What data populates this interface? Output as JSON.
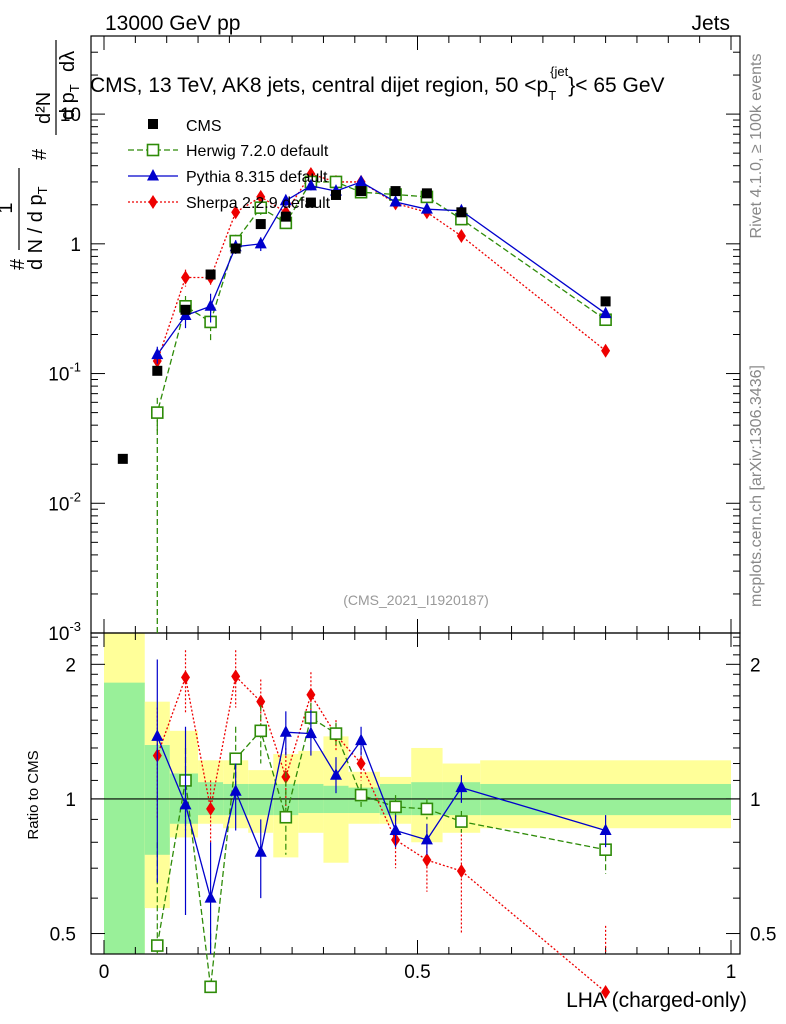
{
  "header": {
    "left": "13000 GeV pp",
    "right": "Jets",
    "right_vertical_top": "Rivet 4.1.0, ≥ 100k events",
    "right_vertical_bottom": "mcplots.cern.ch [arXiv:1306.3436]",
    "analysis_id": "(CMS_2021_I1920187)"
  },
  "colors": {
    "data": "#000000",
    "herwig": "#2e8b08",
    "pythia": "#0000cc",
    "sherpa": "#ee0000",
    "band_inner": "#99f099",
    "band_outer": "#ffff99"
  },
  "chart_data": {
    "type": "scatter",
    "title": "CMS, 13 TeV, AK8 jets, central dijet region, 50 <p_T^{jet}< 65 GeV",
    "title_parts": {
      "main": "CMS, 13 TeV, AK8 jets, central dijet region, 50 <p",
      "sub": "T",
      "sup": "{jet",
      "tail": "}< 65 GeV"
    },
    "xlabel": "LHA (charged-only)",
    "xlim": [
      -0.02,
      1.0
    ],
    "x_ticks": [
      "0",
      "0.5",
      "1"
    ],
    "x_tick_values": [
      0,
      0.5,
      1
    ],
    "main": {
      "yscale": "log",
      "ylim": [
        0.001,
        40
      ],
      "ylabel": "1/(dN/dp_T) d²N/(dp_T dλ)",
      "ylabel_parts": {
        "one": "1",
        "dN": "d N / d p",
        "T": "T",
        "hash": "#",
        "d2N": "d²N",
        "dpT": "d p",
        "dl": "dλ"
      },
      "y_ticks": [
        {
          "label": "10",
          "sup": "-3",
          "value": 0.001
        },
        {
          "label": "10",
          "sup": "-2",
          "value": 0.01
        },
        {
          "label": "10",
          "sup": "-1",
          "value": 0.1
        },
        {
          "label": "1",
          "sup": "",
          "value": 1
        },
        {
          "label": "10",
          "sup": "",
          "value": 10
        }
      ],
      "legend": [
        {
          "key": "cms",
          "label": "CMS"
        },
        {
          "key": "herwig",
          "label": "Herwig 7.2.0 default"
        },
        {
          "key": "pythia",
          "label": "Pythia 8.315 default"
        },
        {
          "key": "sherpa",
          "label": "Sherpa 2.2.9 default"
        }
      ],
      "legend_position": "top-left",
      "cms": {
        "x": [
          0.03,
          0.085,
          0.13,
          0.17,
          0.21,
          0.25,
          0.29,
          0.33,
          0.37,
          0.41,
          0.465,
          0.515,
          0.57,
          0.8
        ],
        "y": [
          0.022,
          0.105,
          0.31,
          0.58,
          0.92,
          1.42,
          1.62,
          2.08,
          2.38,
          2.55,
          2.55,
          2.45,
          1.75,
          0.36
        ]
      },
      "herwig": {
        "x": [
          0.085,
          0.13,
          0.17,
          0.21,
          0.25,
          0.29,
          0.33,
          0.37,
          0.41,
          0.465,
          0.515,
          0.57,
          0.8
        ],
        "y": [
          0.05,
          0.33,
          0.25,
          1.05,
          1.9,
          1.45,
          3.0,
          3.0,
          2.5,
          2.4,
          2.3,
          1.55,
          0.26
        ],
        "err": [
          0.3,
          0.2,
          0.3,
          0.12,
          0.12,
          0.1,
          0.08,
          0.08,
          0.05,
          0.05,
          0.05,
          0.05,
          0.08
        ]
      },
      "pythia": {
        "x": [
          0.085,
          0.13,
          0.17,
          0.21,
          0.25,
          0.29,
          0.33,
          0.37,
          0.41,
          0.465,
          0.515,
          0.57,
          0.8
        ],
        "y": [
          0.14,
          0.28,
          0.33,
          0.95,
          1.0,
          2.15,
          2.8,
          2.55,
          3.0,
          2.1,
          1.85,
          1.8,
          0.29
        ],
        "err": [
          0.15,
          0.2,
          0.25,
          0.12,
          0.12,
          0.1,
          0.08,
          0.06,
          0.06,
          0.06,
          0.06,
          0.06,
          0.06
        ]
      },
      "sherpa": {
        "x": [
          0.085,
          0.13,
          0.17,
          0.21,
          0.25,
          0.29,
          0.33,
          0.37,
          0.41,
          0.465,
          0.515,
          0.57,
          0.8
        ],
        "y": [
          0.125,
          0.55,
          0.55,
          1.75,
          2.3,
          1.75,
          3.45,
          3.0,
          3.0,
          2.05,
          1.75,
          1.15,
          0.15
        ],
        "err": [
          0.18,
          0.15,
          0.12,
          0.1,
          0.1,
          0.1,
          0.08,
          0.08,
          0.08,
          0.08,
          0.08,
          0.08,
          0.1
        ]
      }
    },
    "ratio": {
      "ylabel": "Ratio to CMS",
      "ylim": [
        0.45,
        2.35
      ],
      "y_ticks": [
        {
          "label": "0.5",
          "value": 0.5
        },
        {
          "label": "1",
          "value": 1
        },
        {
          "label": "2",
          "value": 2
        }
      ],
      "band_edges": [
        0.0,
        0.065,
        0.105,
        0.15,
        0.19,
        0.23,
        0.27,
        0.31,
        0.35,
        0.39,
        0.44,
        0.49,
        0.54,
        0.6,
        1.0
      ],
      "band_inner": [
        [
          0.38,
          1.82
        ],
        [
          0.75,
          1.32
        ],
        [
          0.88,
          1.14
        ],
        [
          0.92,
          1.09
        ],
        [
          0.92,
          1.08
        ],
        [
          0.92,
          1.08
        ],
        [
          0.92,
          1.08
        ],
        [
          0.93,
          1.08
        ],
        [
          0.93,
          1.07
        ],
        [
          0.93,
          1.06
        ],
        [
          0.92,
          1.08
        ],
        [
          0.92,
          1.09
        ],
        [
          0.92,
          1.09
        ],
        [
          0.92,
          1.08
        ]
      ],
      "band_outer": [
        [
          0.38,
          2.35
        ],
        [
          0.57,
          1.65
        ],
        [
          0.82,
          1.42
        ],
        [
          0.88,
          1.22
        ],
        [
          0.86,
          1.22
        ],
        [
          0.84,
          1.16
        ],
        [
          0.74,
          1.26
        ],
        [
          0.84,
          1.28
        ],
        [
          0.72,
          1.38
        ],
        [
          0.88,
          1.15
        ],
        [
          0.88,
          1.12
        ],
        [
          0.8,
          1.3
        ],
        [
          0.84,
          1.2
        ],
        [
          0.86,
          1.22
        ]
      ],
      "herwig": {
        "x": [
          0.085,
          0.13,
          0.17,
          0.21,
          0.25,
          0.29,
          0.33,
          0.37,
          0.41,
          0.465,
          0.515,
          0.57,
          0.8
        ],
        "y": [
          0.47,
          1.1,
          0.38,
          1.23,
          1.42,
          0.91,
          1.52,
          1.4,
          1.02,
          0.96,
          0.95,
          0.89,
          0.77
        ],
        "lo": [
          0.2,
          0.85,
          0.3,
          1.0,
          1.2,
          0.75,
          1.4,
          1.32,
          0.96,
          0.9,
          0.9,
          0.84,
          0.68
        ],
        "hi": [
          0.8,
          1.3,
          0.5,
          1.45,
          1.62,
          1.15,
          1.64,
          1.48,
          1.08,
          1.02,
          1.0,
          0.94,
          0.86
        ]
      },
      "pythia": {
        "x": [
          0.085,
          0.13,
          0.17,
          0.21,
          0.25,
          0.29,
          0.33,
          0.37,
          0.41,
          0.465,
          0.515,
          0.57,
          0.8
        ],
        "y": [
          1.38,
          0.97,
          0.6,
          1.04,
          0.76,
          1.41,
          1.4,
          1.13,
          1.35,
          0.85,
          0.81,
          1.06,
          0.85
        ],
        "lo": [
          0.65,
          0.55,
          0.35,
          0.85,
          0.6,
          1.25,
          1.25,
          1.03,
          1.25,
          0.78,
          0.75,
          0.98,
          0.78
        ],
        "hi": [
          2.05,
          1.45,
          0.8,
          1.2,
          0.9,
          1.57,
          1.58,
          1.24,
          1.45,
          0.92,
          0.88,
          1.13,
          0.92
        ]
      },
      "sherpa": {
        "x": [
          0.085,
          0.13,
          0.17,
          0.21,
          0.25,
          0.29,
          0.33,
          0.37,
          0.41,
          0.465,
          0.515,
          0.57,
          0.8
        ],
        "y": [
          1.25,
          1.87,
          0.95,
          1.88,
          1.65,
          1.12,
          1.71,
          1.39,
          1.2,
          0.81,
          0.73,
          0.69,
          0.37
        ],
        "lo": [
          0.9,
          1.55,
          0.8,
          1.6,
          1.45,
          0.95,
          1.5,
          1.28,
          1.1,
          0.7,
          0.62,
          0.5,
          0.3
        ],
        "hi": [
          1.6,
          2.15,
          1.1,
          2.15,
          1.85,
          1.3,
          1.92,
          1.5,
          1.3,
          0.92,
          0.85,
          0.85,
          0.52
        ]
      }
    }
  }
}
